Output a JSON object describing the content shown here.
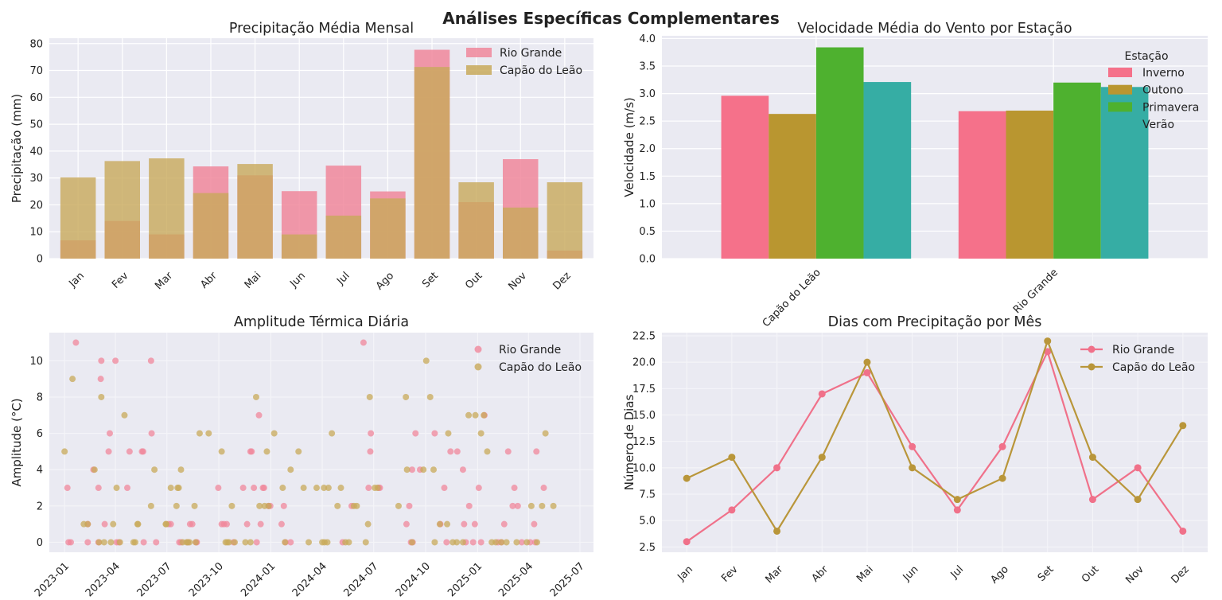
{
  "suptitle": "Análises Específicas Complementares",
  "chart_data": [
    {
      "type": "bar",
      "title": "Precipitação Média Mensal",
      "xlabel": "",
      "ylabel": "Precipitação (mm)",
      "ylim": [
        0,
        82
      ],
      "yticks": [
        "0",
        "10",
        "20",
        "30",
        "40",
        "50",
        "60",
        "70",
        "80"
      ],
      "categories": [
        "Jan",
        "Fev",
        "Mar",
        "Abr",
        "Mai",
        "Jun",
        "Jul",
        "Ago",
        "Set",
        "Out",
        "Nov",
        "Dez"
      ],
      "series": [
        {
          "name": "Rio Grande",
          "color": "#f0879b",
          "values": [
            6.8,
            14,
            9,
            34.3,
            31,
            25.1,
            34.6,
            25,
            77.7,
            21,
            37,
            3
          ]
        },
        {
          "name": "Capão do Leão",
          "color": "#c8a95a",
          "values": [
            30.2,
            36.3,
            37.3,
            24.4,
            35.2,
            9,
            16,
            22.4,
            71.3,
            28.4,
            19,
            28.4
          ]
        }
      ],
      "overlay": true,
      "grid": true,
      "legend_position": "upper-right"
    },
    {
      "type": "bar",
      "title": "Velocidade Média do Vento por Estação",
      "xlabel": "",
      "ylabel": "Velocidade (m/s)",
      "ylim": [
        0,
        4.05
      ],
      "yticks": [
        "0.0",
        "0.5",
        "1.0",
        "1.5",
        "2.0",
        "2.5",
        "3.0",
        "3.5",
        "4.0"
      ],
      "categories": [
        "Capão do Leão",
        "Rio Grande"
      ],
      "legend_title": "Estação",
      "series": [
        {
          "name": "Inverno",
          "color": "#f5718a",
          "values": [
            2.96,
            2.68
          ]
        },
        {
          "name": "Outono",
          "color": "#b99630",
          "values": [
            2.63,
            2.69
          ]
        },
        {
          "name": "Primavera",
          "color": "#4eb12f",
          "values": [
            3.84,
            3.2
          ]
        },
        {
          "name": "Verão",
          "color": "#36ada4",
          "values": [
            3.21,
            3.12
          ]
        }
      ],
      "grid": true,
      "legend_position": "upper-right"
    },
    {
      "type": "scatter",
      "title": "Amplitude Térmica Diária",
      "xlabel": "",
      "ylabel": "Amplitude (°C)",
      "ylim": [
        -0.55,
        11.55
      ],
      "xlim": [
        "2022-12-05",
        "2025-07-25"
      ],
      "xticks": [
        "2023-01",
        "2023-04",
        "2023-07",
        "2023-10",
        "2024-01",
        "2024-04",
        "2024-07",
        "2024-10",
        "2025-01",
        "2025-04",
        "2025-07"
      ],
      "yticks": [
        "0",
        "2",
        "4",
        "6",
        "8",
        "10"
      ],
      "series": [
        {
          "name": "Rio Grande",
          "color": "#f0879b",
          "points": [
            [
              "2023-01-06",
              3
            ],
            [
              "2023-01-08",
              0
            ],
            [
              "2023-01-12",
              0
            ],
            [
              "2023-01-21",
              11
            ],
            [
              "2023-02-11",
              1
            ],
            [
              "2023-02-11",
              0
            ],
            [
              "2023-02-21",
              4
            ],
            [
              "2023-03-02",
              3
            ],
            [
              "2023-03-02",
              0
            ],
            [
              "2023-03-06",
              9
            ],
            [
              "2023-03-07",
              10
            ],
            [
              "2023-03-13",
              1
            ],
            [
              "2023-03-20",
              5
            ],
            [
              "2023-03-22",
              6
            ],
            [
              "2023-04-01",
              10
            ],
            [
              "2023-04-03",
              0
            ],
            [
              "2023-04-07",
              0
            ],
            [
              "2023-04-22",
              3
            ],
            [
              "2023-04-26",
              5
            ],
            [
              "2023-05-18",
              5
            ],
            [
              "2023-05-20",
              5
            ],
            [
              "2023-05-21",
              0
            ],
            [
              "2023-06-03",
              10
            ],
            [
              "2023-06-04",
              6
            ],
            [
              "2023-06-12",
              0
            ],
            [
              "2023-07-04",
              1
            ],
            [
              "2023-07-08",
              1
            ],
            [
              "2023-07-23",
              0
            ],
            [
              "2023-07-26",
              0
            ],
            [
              "2023-08-07",
              0
            ],
            [
              "2023-08-11",
              1
            ],
            [
              "2023-08-15",
              1
            ],
            [
              "2023-08-22",
              0
            ],
            [
              "2023-08-23",
              0
            ],
            [
              "2023-09-30",
              3
            ],
            [
              "2023-10-06",
              1
            ],
            [
              "2023-10-10",
              1
            ],
            [
              "2023-10-15",
              1
            ],
            [
              "2023-10-27",
              0
            ],
            [
              "2023-11-13",
              3
            ],
            [
              "2023-11-20",
              1
            ],
            [
              "2023-11-26",
              5
            ],
            [
              "2023-11-28",
              5
            ],
            [
              "2023-12-02",
              3
            ],
            [
              "2023-12-07",
              0
            ],
            [
              "2023-12-11",
              7
            ],
            [
              "2023-12-14",
              1
            ],
            [
              "2023-12-18",
              3
            ],
            [
              "2023-12-20",
              3
            ],
            [
              "2023-12-28",
              2
            ],
            [
              "2023-12-31",
              2
            ],
            [
              "2024-01-20",
              1
            ],
            [
              "2024-01-24",
              2
            ],
            [
              "2024-01-27",
              0
            ],
            [
              "2024-02-05",
              0
            ],
            [
              "2024-05-07",
              0
            ],
            [
              "2024-05-23",
              2
            ],
            [
              "2024-06-13",
              11
            ],
            [
              "2024-06-22",
              3
            ],
            [
              "2024-06-25",
              5
            ],
            [
              "2024-06-26",
              6
            ],
            [
              "2024-07-10",
              3
            ],
            [
              "2024-07-12",
              3
            ],
            [
              "2024-08-28",
              1
            ],
            [
              "2024-09-02",
              2
            ],
            [
              "2024-09-05",
              0
            ],
            [
              "2024-09-07",
              4
            ],
            [
              "2024-09-08",
              0
            ],
            [
              "2024-09-13",
              6
            ],
            [
              "2024-09-21",
              4
            ],
            [
              "2024-10-17",
              6
            ],
            [
              "2024-10-27",
              1
            ],
            [
              "2024-11-03",
              3
            ],
            [
              "2024-11-07",
              0
            ],
            [
              "2024-11-14",
              5
            ],
            [
              "2024-11-26",
              5
            ],
            [
              "2024-12-06",
              4
            ],
            [
              "2024-12-08",
              1
            ],
            [
              "2024-12-11",
              0
            ],
            [
              "2024-12-17",
              2
            ],
            [
              "2024-12-24",
              0
            ],
            [
              "2024-12-27",
              1
            ],
            [
              "2025-01-03",
              3
            ],
            [
              "2025-01-07",
              0
            ],
            [
              "2025-01-13",
              7
            ],
            [
              "2025-02-06",
              0
            ],
            [
              "2025-02-12",
              0
            ],
            [
              "2025-02-17",
              1
            ],
            [
              "2025-02-24",
              5
            ],
            [
              "2025-03-04",
              2
            ],
            [
              "2025-03-07",
              3
            ],
            [
              "2025-03-13",
              2
            ],
            [
              "2025-03-20",
              0
            ],
            [
              "2025-04-04",
              0
            ],
            [
              "2025-04-11",
              1
            ],
            [
              "2025-04-13",
              0
            ],
            [
              "2025-04-15",
              5
            ],
            [
              "2025-04-28",
              3
            ]
          ]
        },
        {
          "name": "Capão do Leão",
          "color": "#c8a95a",
          "points": [
            [
              "2023-01-01",
              5
            ],
            [
              "2023-01-15",
              9
            ],
            [
              "2023-02-04",
              1
            ],
            [
              "2023-02-11",
              1
            ],
            [
              "2023-02-23",
              4
            ],
            [
              "2023-03-03",
              0
            ],
            [
              "2023-03-07",
              8
            ],
            [
              "2023-03-12",
              0
            ],
            [
              "2023-03-24",
              0
            ],
            [
              "2023-03-28",
              1
            ],
            [
              "2023-04-03",
              3
            ],
            [
              "2023-04-09",
              0
            ],
            [
              "2023-04-17",
              7
            ],
            [
              "2023-05-03",
              0
            ],
            [
              "2023-05-06",
              0
            ],
            [
              "2023-05-10",
              1
            ],
            [
              "2023-05-11",
              1
            ],
            [
              "2023-06-03",
              2
            ],
            [
              "2023-06-09",
              4
            ],
            [
              "2023-06-29",
              1
            ],
            [
              "2023-06-30",
              1
            ],
            [
              "2023-07-08",
              3
            ],
            [
              "2023-07-18",
              2
            ],
            [
              "2023-07-20",
              3
            ],
            [
              "2023-07-22",
              3
            ],
            [
              "2023-07-26",
              4
            ],
            [
              "2023-07-29",
              0
            ],
            [
              "2023-08-05",
              0
            ],
            [
              "2023-08-07",
              0
            ],
            [
              "2023-08-10",
              0
            ],
            [
              "2023-08-19",
              2
            ],
            [
              "2023-08-21",
              0
            ],
            [
              "2023-08-28",
              6
            ],
            [
              "2023-09-13",
              6
            ],
            [
              "2023-10-06",
              5
            ],
            [
              "2023-10-13",
              0
            ],
            [
              "2023-10-16",
              0
            ],
            [
              "2023-10-19",
              0
            ],
            [
              "2023-10-24",
              2
            ],
            [
              "2023-10-29",
              0
            ],
            [
              "2023-11-17",
              0
            ],
            [
              "2023-11-26",
              0
            ],
            [
              "2023-12-06",
              8
            ],
            [
              "2023-12-12",
              2
            ],
            [
              "2023-12-21",
              2
            ],
            [
              "2023-12-25",
              5
            ],
            [
              "2023-12-28",
              2
            ],
            [
              "2024-01-07",
              6
            ],
            [
              "2024-01-22",
              3
            ],
            [
              "2024-01-26",
              0
            ],
            [
              "2024-02-05",
              4
            ],
            [
              "2024-02-19",
              5
            ],
            [
              "2024-02-28",
              3
            ],
            [
              "2024-03-08",
              0
            ],
            [
              "2024-03-22",
              3
            ],
            [
              "2024-04-01",
              0
            ],
            [
              "2024-04-04",
              3
            ],
            [
              "2024-04-05",
              0
            ],
            [
              "2024-04-10",
              0
            ],
            [
              "2024-04-12",
              3
            ],
            [
              "2024-04-18",
              6
            ],
            [
              "2024-04-28",
              2
            ],
            [
              "2024-05-04",
              3
            ],
            [
              "2024-05-12",
              0
            ],
            [
              "2024-05-18",
              0
            ],
            [
              "2024-05-27",
              2
            ],
            [
              "2024-06-01",
              2
            ],
            [
              "2024-06-17",
              0
            ],
            [
              "2024-06-21",
              1
            ],
            [
              "2024-06-24",
              8
            ],
            [
              "2024-07-03",
              3
            ],
            [
              "2024-07-08",
              3
            ],
            [
              "2024-08-14",
              2
            ],
            [
              "2024-08-27",
              8
            ],
            [
              "2024-08-29",
              4
            ],
            [
              "2024-09-07",
              0
            ],
            [
              "2024-09-27",
              4
            ],
            [
              "2024-10-02",
              10
            ],
            [
              "2024-10-09",
              8
            ],
            [
              "2024-10-15",
              4
            ],
            [
              "2024-10-17",
              0
            ],
            [
              "2024-10-26",
              1
            ],
            [
              "2024-11-08",
              1
            ],
            [
              "2024-11-10",
              6
            ],
            [
              "2024-11-18",
              0
            ],
            [
              "2024-11-25",
              0
            ],
            [
              "2024-12-06",
              0
            ],
            [
              "2024-12-16",
              7
            ],
            [
              "2024-12-28",
              7
            ],
            [
              "2025-01-07",
              6
            ],
            [
              "2025-01-12",
              7
            ],
            [
              "2025-01-18",
              5
            ],
            [
              "2025-01-26",
              0
            ],
            [
              "2025-02-02",
              0
            ],
            [
              "2025-02-12",
              0
            ],
            [
              "2025-02-21",
              0
            ],
            [
              "2025-03-11",
              0
            ],
            [
              "2025-03-29",
              0
            ],
            [
              "2025-04-06",
              2
            ],
            [
              "2025-04-16",
              0
            ],
            [
              "2025-04-25",
              2
            ],
            [
              "2025-05-01",
              6
            ],
            [
              "2025-05-15",
              2
            ]
          ]
        }
      ],
      "grid": true,
      "legend_position": "upper-right"
    },
    {
      "type": "line",
      "title": "Dias com Precipitação por Mês",
      "xlabel": "",
      "ylabel": "Número de Dias",
      "ylim": [
        2.0,
        22.8
      ],
      "yticks": [
        "2.5",
        "5.0",
        "7.5",
        "10.0",
        "12.5",
        "15.0",
        "17.5",
        "20.0",
        "22.5"
      ],
      "categories": [
        "Jan",
        "Fev",
        "Mar",
        "Abr",
        "Mai",
        "Jun",
        "Jul",
        "Ago",
        "Set",
        "Out",
        "Nov",
        "Dez"
      ],
      "series": [
        {
          "name": "Rio Grande",
          "color": "#f0718a",
          "values": [
            3,
            6,
            10,
            17,
            19,
            12,
            6,
            12,
            21,
            7,
            10,
            4
          ]
        },
        {
          "name": "Capão do Leão",
          "color": "#b9963a",
          "values": [
            9,
            11,
            4,
            11,
            20,
            10,
            7,
            9,
            22,
            11,
            7,
            14
          ]
        }
      ],
      "grid": true,
      "legend_position": "upper-right"
    }
  ]
}
